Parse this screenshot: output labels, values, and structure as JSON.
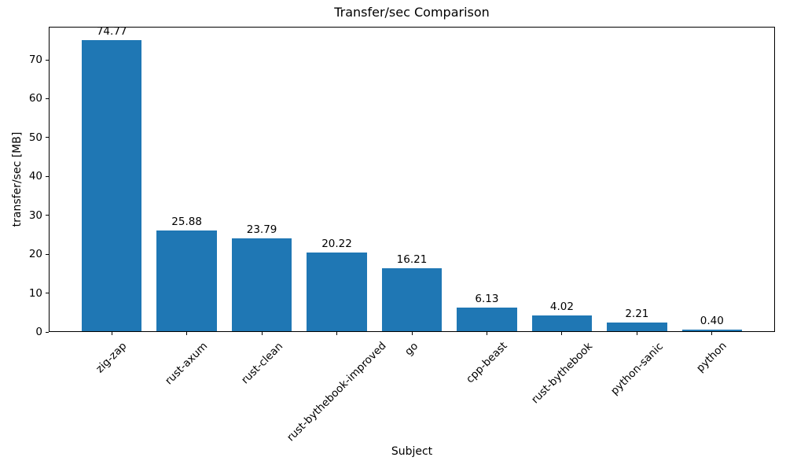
{
  "chart_data": {
    "type": "bar",
    "title": "Transfer/sec Comparison",
    "xlabel": "Subject",
    "ylabel": "transfer/sec [MB]",
    "categories": [
      "zig-zap",
      "rust-axum",
      "rust-clean",
      "rust-bythebook-improved",
      "go",
      "cpp-beast",
      "rust-bythebook",
      "python-sanic",
      "python"
    ],
    "values": [
      74.77,
      25.88,
      23.79,
      20.22,
      16.21,
      6.13,
      4.02,
      2.21,
      0.4
    ],
    "value_labels": [
      "74.77",
      "25.88",
      "23.79",
      "20.22",
      "16.21",
      "6.13",
      "4.02",
      "2.21",
      "0.40"
    ],
    "yticks": [
      0,
      10,
      20,
      30,
      40,
      50,
      60,
      70
    ],
    "ylim": [
      0,
      78.5
    ],
    "grid": false,
    "legend_position": "none",
    "bar_color": "#1f77b4",
    "axis_color": "#000000",
    "text_color": "#000000",
    "background_color": "#ffffff"
  }
}
